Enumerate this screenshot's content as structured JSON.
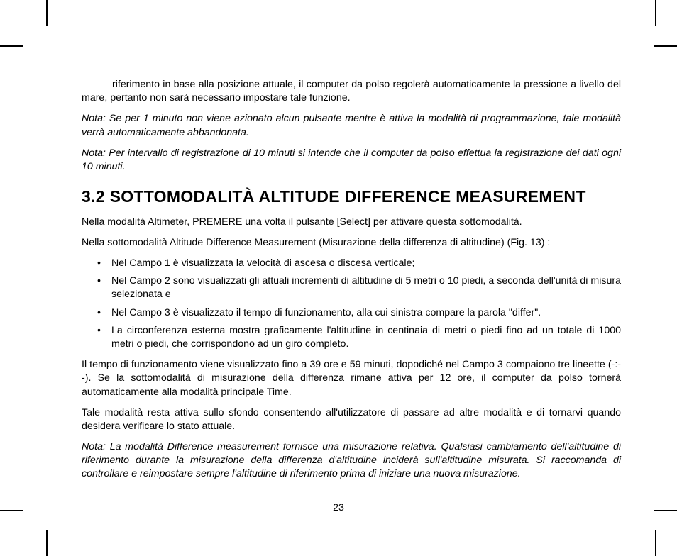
{
  "intro_paragraph": "riferimento in base alla posizione attuale, il computer da polso regolerà automaticamente la pressione a livello del mare, pertanto non sarà necessario impostare tale funzione.",
  "note1": "Nota: Se per 1 minuto non viene azionato alcun pulsante mentre è attiva la modalità di programmazione, tale modalità verrà automaticamente abbandonata.",
  "note2": "Nota: Per intervallo di registrazione di 10 minuti si intende che il computer da polso effettua la registrazione dei dati ogni 10 minuti.",
  "heading": "3.2 SOTTOMODALITÀ ALTITUDE DIFFERENCE MEASUREMENT",
  "para1": "Nella modalità Altimeter, PREMERE una volta il pulsante [Select] per attivare questa sottomodalità.",
  "para2": "Nella sottomodalità Altitude Difference Measurement (Misurazione della differenza di altitudine) (Fig. 13) :",
  "bullets": [
    "Nel Campo 1 è visualizzata la velocità di ascesa o discesa verticale;",
    "Nel Campo 2 sono visualizzati gli attuali incrementi di altitudine di 5 metri o 10 piedi, a seconda dell'unità di misura selezionata e",
    "Nel Campo 3 è visualizzato il tempo di funzionamento, alla cui sinistra compare la parola \"differ\".",
    "La circonferenza esterna mostra graficamente l'altitudine in centinaia di metri o piedi fino ad un totale di 1000 metri o piedi, che corrispondono ad un giro completo."
  ],
  "para3": "Il tempo di funzionamento viene visualizzato fino a 39 ore e 59 minuti, dopodiché nel Campo 3 compaiono tre lineette (-:--). Se la sottomodalità di misurazione della differenza rimane attiva per 12 ore, il computer da polso tornerà automaticamente alla modalità principale Time.",
  "para4": "Tale modalità resta attiva sullo sfondo consentendo all'utilizzatore di passare ad altre modalità e di tornarvi quando desidera verificare lo stato attuale.",
  "note3": "Nota: La modalità Difference measurement fornisce una misurazione relativa. Qualsiasi cambiamento dell'altitudine di riferimento durante la misurazione della differenza d'altitudine inciderà sull'altitudine misurata. Si raccomanda di controllare e reimpostare sempre l'altitudine di riferimento prima di iniziare una nuova misurazione.",
  "page_number": "23"
}
